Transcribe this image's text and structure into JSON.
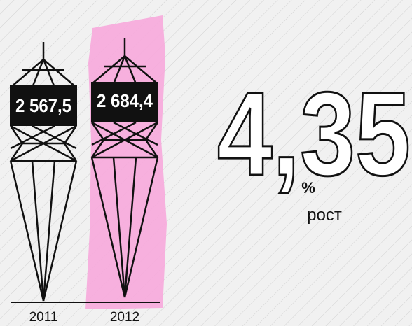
{
  "items": [
    {
      "year": "2011",
      "value": "2 567,5"
    },
    {
      "year": "2012",
      "value": "2 684,4"
    }
  ],
  "growth": {
    "value": "4,35",
    "unit": "%",
    "label": "рост"
  }
}
